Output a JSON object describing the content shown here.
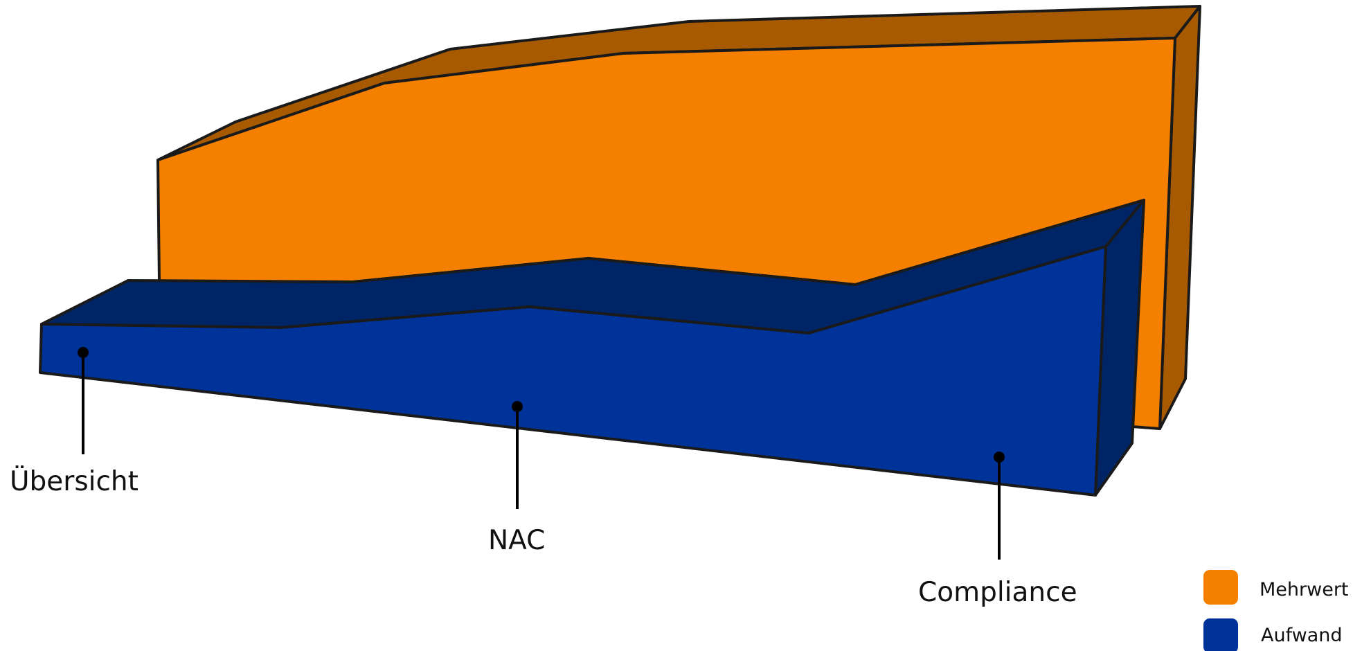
{
  "colors": {
    "mehrwert_front": "#F58000",
    "mehrwert_top": "#A85A00",
    "mehrwert_side": "#A85A00",
    "aufwand_front": "#003399",
    "aufwand_top": "#002566",
    "aufwand_side": "#002566",
    "outline": "#1a1a1a"
  },
  "callouts": [
    {
      "key": "uebersicht",
      "label": "Übersicht"
    },
    {
      "key": "nac",
      "label": "NAC"
    },
    {
      "key": "compliance",
      "label": "Compliance"
    }
  ],
  "legend": [
    {
      "label": "Mehrwert",
      "color": "#F58000"
    },
    {
      "label": "Aufwand",
      "color": "#003399"
    }
  ]
}
